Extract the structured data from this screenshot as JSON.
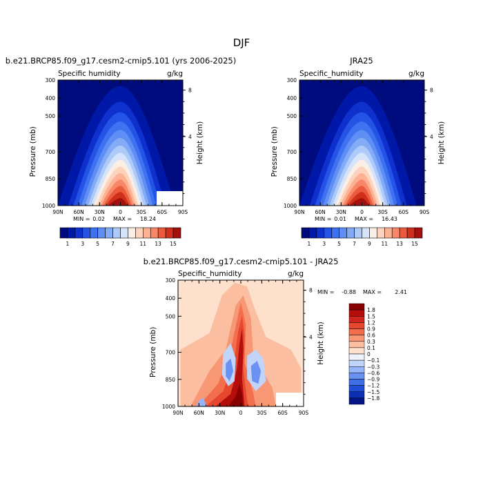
{
  "figure_title": "DJF",
  "chart_data": [
    {
      "type": "heatmap",
      "title": "b.e21.BRCP85.f09_g17.cesm2-cmip5.101 (yrs 2006-2025)",
      "left_label": "Specific humidity",
      "right_label": "g/kg",
      "ylabel": "Pressure (mb)",
      "y2label": "Height (km)",
      "x_ticks": [
        "90N",
        "60N",
        "30N",
        "0",
        "30S",
        "60S",
        "90S"
      ],
      "y_ticks": [
        "300",
        "400",
        "500",
        "700",
        "850",
        "1000"
      ],
      "y2_ticks": [
        "8",
        "4"
      ],
      "stats": {
        "min_label": "MIN =",
        "min": "0.02",
        "max_label": "MAX =",
        "max": "18.24"
      },
      "max_value": 18.24,
      "colorbar": {
        "orientation": "horizontal",
        "levels": [
          1,
          2,
          3,
          4,
          5,
          6,
          7,
          8,
          9,
          10,
          11,
          12,
          13,
          14,
          15
        ],
        "tick_labels": [
          "1",
          "3",
          "5",
          "7",
          "9",
          "11",
          "13",
          "15"
        ],
        "colors": [
          "#000c7d",
          "#0018a8",
          "#0e30cd",
          "#2454e6",
          "#3e72f0",
          "#5f8ff4",
          "#84abf6",
          "#aecaf9",
          "#d6e4fb",
          "#fbeee4",
          "#fdd3bd",
          "#fcb293",
          "#f88768",
          "#ea5a3c",
          "#d0301b",
          "#a4100b"
        ]
      }
    },
    {
      "type": "heatmap",
      "title": "JRA25",
      "left_label": "Specific_humidity",
      "right_label": "g/kg",
      "ylabel": "Pressure (mb)",
      "y2label": "Height (km)",
      "x_ticks": [
        "90N",
        "60N",
        "30N",
        "0",
        "30S",
        "60S",
        "90S"
      ],
      "y_ticks": [
        "300",
        "400",
        "500",
        "700",
        "850",
        "1000"
      ],
      "y2_ticks": [
        "8",
        "4"
      ],
      "stats": {
        "min_label": "MIN =",
        "min": "0.01",
        "max_label": "MAX =",
        "max": "16.43"
      },
      "max_value": 16.43,
      "colorbar": {
        "orientation": "horizontal",
        "levels": [
          1,
          2,
          3,
          4,
          5,
          6,
          7,
          8,
          9,
          10,
          11,
          12,
          13,
          14,
          15
        ],
        "tick_labels": [
          "1",
          "3",
          "5",
          "7",
          "9",
          "11",
          "13",
          "15"
        ],
        "colors": [
          "#000c7d",
          "#0018a8",
          "#0e30cd",
          "#2454e6",
          "#3e72f0",
          "#5f8ff4",
          "#84abf6",
          "#aecaf9",
          "#d6e4fb",
          "#fbeee4",
          "#fdd3bd",
          "#fcb293",
          "#f88768",
          "#ea5a3c",
          "#d0301b",
          "#a4100b"
        ]
      }
    },
    {
      "type": "heatmap",
      "title": "b.e21.BRCP85.f09_g17.cesm2-cmip5.101 - JRA25",
      "left_label": "Specific_humidity",
      "right_label": "g/kg",
      "ylabel": "Pressure (mb)",
      "y2label": "Height (km)",
      "x_ticks": [
        "90N",
        "60N",
        "30N",
        "0",
        "30S",
        "60S",
        "90S"
      ],
      "y_ticks": [
        "300",
        "400",
        "500",
        "700",
        "850",
        "1000"
      ],
      "y2_ticks": [
        "8",
        "4"
      ],
      "stats": {
        "min_label": "MIN =",
        "min": "-0.88",
        "max_label": "MAX =",
        "max": "2.41"
      },
      "colorbar": {
        "orientation": "vertical",
        "levels": [
          1.8,
          1.5,
          1.2,
          0.9,
          0.6,
          0.3,
          0.1,
          0,
          -0.1,
          -0.3,
          -0.6,
          -0.9,
          -1.2,
          -1.5,
          -1.8
        ],
        "tick_labels": [
          "1.8",
          "1.5",
          "1.2",
          "0.9",
          "0.6",
          "0.3",
          "0.1",
          "0",
          "−0.1",
          "−0.3",
          "−0.6",
          "−0.9",
          "−1.2",
          "−1.5",
          "−1.8"
        ],
        "colors": [
          "#8a0000",
          "#b30e0b",
          "#d0251c",
          "#e5482f",
          "#f26e4d",
          "#f89774",
          "#fbbea0",
          "#fde1cd",
          "#eef2fc",
          "#c3d4fa",
          "#96b4f7",
          "#6a92f2",
          "#3f6fe8",
          "#1e4ed6",
          "#0c2fb3",
          "#041588"
        ]
      }
    }
  ]
}
